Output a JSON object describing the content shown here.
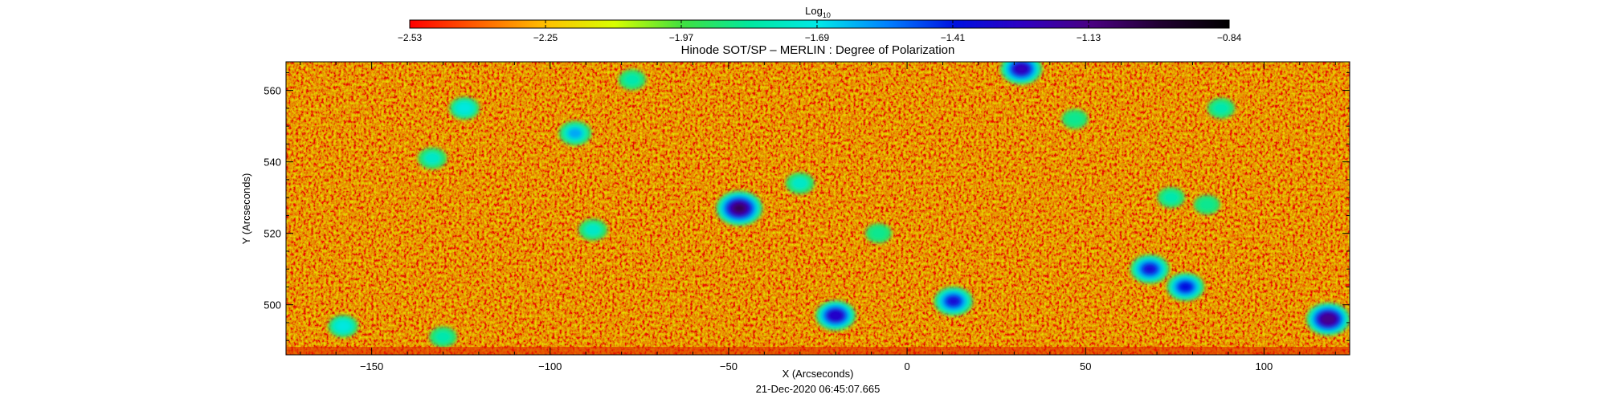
{
  "chart_data": {
    "type": "heatmap",
    "title": "Hinode SOT/SP – MERLIN : Degree of Polarization",
    "xlabel": "X (Arcseconds)",
    "ylabel": "Y (Arcseconds)",
    "timestamp": "21-Dec-2020 06:45:07.665",
    "xlim": [
      -174,
      124
    ],
    "ylim": [
      486,
      568
    ],
    "xticks": [
      -150,
      -100,
      -50,
      0,
      50,
      100
    ],
    "xtick_labels": [
      "−150",
      "−100",
      "−50",
      "0",
      "50",
      "100"
    ],
    "yticks": [
      500,
      520,
      540,
      560
    ],
    "ytick_labels": [
      "500",
      "520",
      "540",
      "560"
    ],
    "colorbar": {
      "label_base": "Log",
      "label_sub": "10",
      "range": [
        -2.53,
        -0.84
      ],
      "ticks": [
        -2.53,
        -2.25,
        -1.97,
        -1.69,
        -1.41,
        -1.13,
        -0.84
      ],
      "tick_labels": [
        "−2.53",
        "−2.25",
        "−1.97",
        "−1.69",
        "−1.41",
        "−1.13",
        "−0.84"
      ],
      "colormap": [
        "#ff0000",
        "#ff6000",
        "#ffc000",
        "#d8ff00",
        "#40e040",
        "#00e8a0",
        "#00e8e8",
        "#0080ff",
        "#0010e0",
        "#3000c0",
        "#4a0080",
        "#200030",
        "#000000"
      ]
    },
    "background_log10": -2.3,
    "features": [
      {
        "x": -47,
        "y": 527,
        "peak_log10": -1.05
      },
      {
        "x": 32,
        "y": 566,
        "peak_log10": -1.25
      },
      {
        "x": 118,
        "y": 496,
        "peak_log10": -1.15
      },
      {
        "x": 13,
        "y": 501,
        "peak_log10": -1.35
      },
      {
        "x": -20,
        "y": 497,
        "peak_log10": -1.3
      },
      {
        "x": 68,
        "y": 510,
        "peak_log10": -1.35
      },
      {
        "x": 78,
        "y": 505,
        "peak_log10": -1.4
      },
      {
        "x": -93,
        "y": 548,
        "peak_log10": -1.6
      },
      {
        "x": -124,
        "y": 555,
        "peak_log10": -1.7
      },
      {
        "x": -133,
        "y": 541,
        "peak_log10": -1.75
      },
      {
        "x": -158,
        "y": 494,
        "peak_log10": -1.7
      },
      {
        "x": -30,
        "y": 534,
        "peak_log10": -1.75
      },
      {
        "x": 74,
        "y": 530,
        "peak_log10": -1.8
      },
      {
        "x": -77,
        "y": 563,
        "peak_log10": -1.8
      },
      {
        "x": 88,
        "y": 555,
        "peak_log10": -1.8
      },
      {
        "x": -88,
        "y": 521,
        "peak_log10": -1.75
      },
      {
        "x": 47,
        "y": 552,
        "peak_log10": -1.85
      },
      {
        "x": -8,
        "y": 520,
        "peak_log10": -1.85
      },
      {
        "x": 84,
        "y": 528,
        "peak_log10": -1.85
      },
      {
        "x": -130,
        "y": 491,
        "peak_log10": -1.8
      }
    ]
  }
}
